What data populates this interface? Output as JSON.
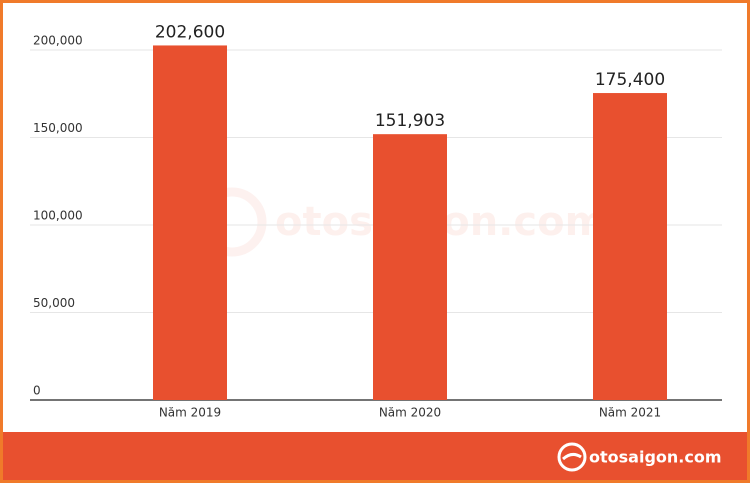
{
  "chart_data": {
    "type": "bar",
    "categories": [
      "Năm 2019",
      "Năm 2020",
      "Năm 2021"
    ],
    "values": [
      202600,
      151903,
      175400
    ],
    "value_labels": [
      "202,600",
      "151,903",
      "175,400"
    ],
    "color": "#e8502f",
    "ylim": [
      0,
      200000
    ],
    "yticks": [
      0,
      {
        "value": 50000,
        "label": "50,000"
      },
      {
        "value": 100000,
        "label": "100,000"
      },
      {
        "value": 150000,
        "label": "150,000"
      },
      {
        "value": 200000,
        "label": "200,000"
      }
    ],
    "grid": true
  },
  "watermark": "otosaigon.com",
  "footer": "otosaigon.com"
}
